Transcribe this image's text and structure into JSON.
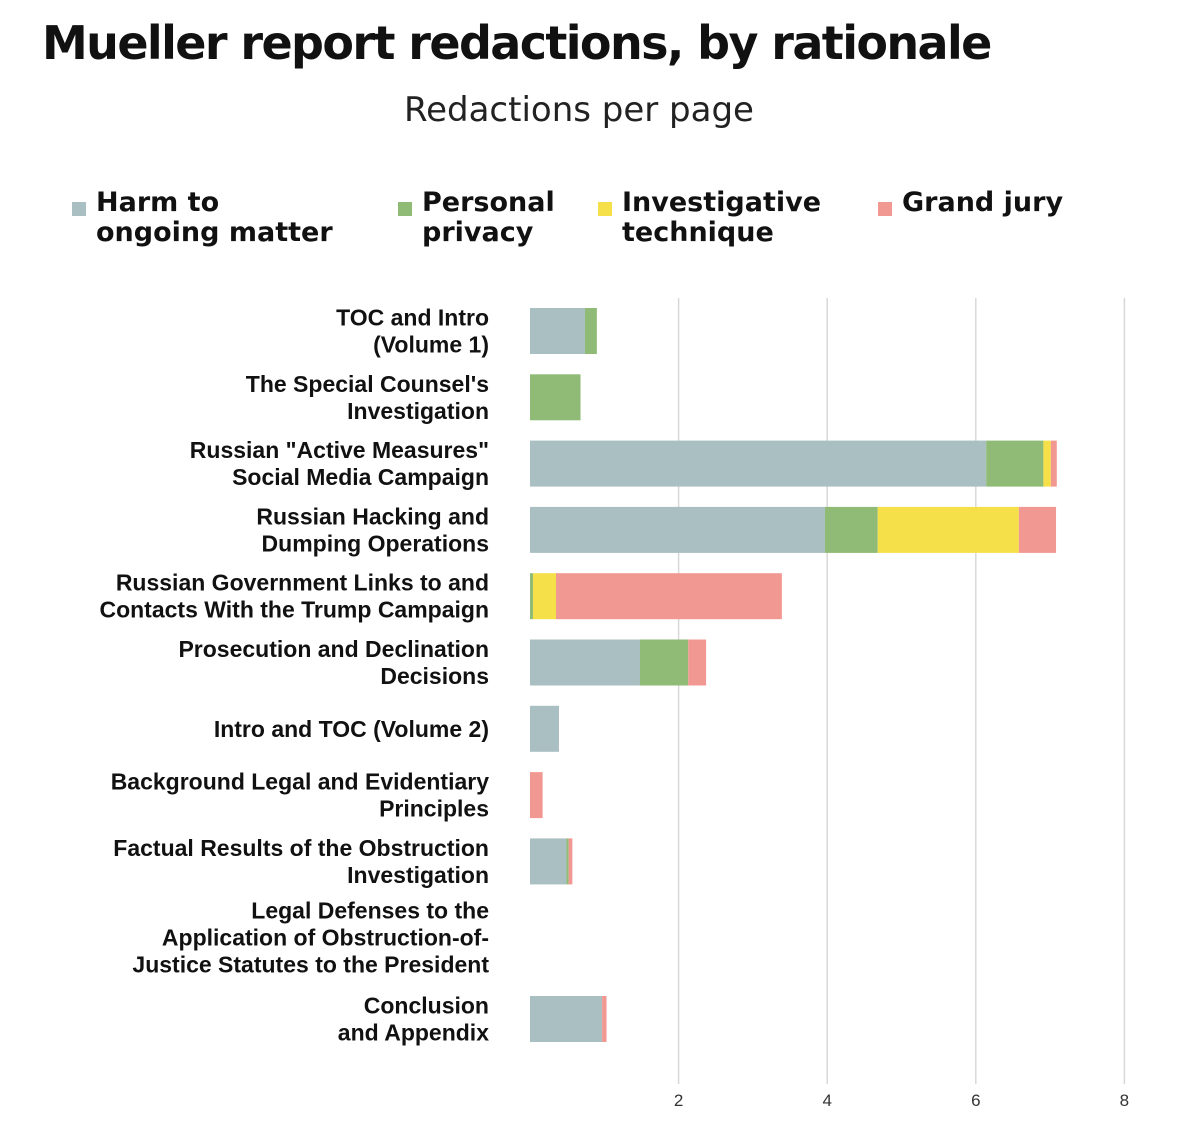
{
  "title": "Mueller report redactions, by rationale",
  "subtitle": "Redactions per page",
  "colors": {
    "harm": "#aabfc2",
    "privacy": "#8fbb76",
    "technique": "#f5e04a",
    "grand_jury": "#f29892",
    "grid": "#d8d8d8"
  },
  "legend": [
    {
      "key": "harm",
      "label": "Harm to\nongoing matter"
    },
    {
      "key": "privacy",
      "label": "Personal\nprivacy"
    },
    {
      "key": "technique",
      "label": "Investigative\ntechnique"
    },
    {
      "key": "grand_jury",
      "label": "Grand jury"
    }
  ],
  "chart_data": {
    "type": "bar",
    "orientation": "horizontal",
    "stacked": true,
    "title": "Mueller report redactions, by rationale",
    "subtitle": "Redactions per page",
    "xlabel": "",
    "ylabel": "",
    "xlim": [
      0,
      8
    ],
    "xticks": [
      2,
      4,
      6,
      8
    ],
    "grid": true,
    "legend_position": "top",
    "categories": [
      [
        "TOC and Intro",
        "(Volume 1)"
      ],
      [
        "The Special Counsel's",
        "Investigation"
      ],
      [
        "Russian \"Active Measures\"",
        "Social Media Campaign"
      ],
      [
        "Russian Hacking and",
        "Dumping Operations"
      ],
      [
        "Russian Government Links to and",
        "Contacts With the Trump Campaign"
      ],
      [
        "Prosecution and Declination",
        "Decisions"
      ],
      [
        "Intro and TOC (Volume 2)"
      ],
      [
        "Background Legal and Evidentiary",
        "Principles"
      ],
      [
        "Factual Results of the Obstruction",
        "Investigation"
      ],
      [
        "Legal Defenses to the",
        "Application of Obstruction-of-",
        "Justice Statutes to the President"
      ],
      [
        "Conclusion",
        "and Appendix"
      ]
    ],
    "series": [
      {
        "name": "Harm to ongoing matter",
        "key": "harm",
        "values": [
          0.74,
          0,
          6.14,
          3.97,
          0,
          1.48,
          0.39,
          0,
          0.49,
          0,
          0.97
        ]
      },
      {
        "name": "Personal privacy",
        "key": "privacy",
        "values": [
          0.16,
          0.68,
          0.77,
          0.71,
          0.04,
          0.65,
          0,
          0,
          0.03,
          0,
          0
        ]
      },
      {
        "name": "Investigative technique",
        "key": "technique",
        "values": [
          0,
          0,
          0.1,
          1.9,
          0.31,
          0,
          0,
          0,
          0,
          0,
          0
        ]
      },
      {
        "name": "Grand jury",
        "key": "grand_jury",
        "values": [
          0,
          0,
          0.08,
          0.5,
          3.04,
          0.24,
          0,
          0.17,
          0.05,
          0,
          0.06
        ]
      }
    ]
  }
}
